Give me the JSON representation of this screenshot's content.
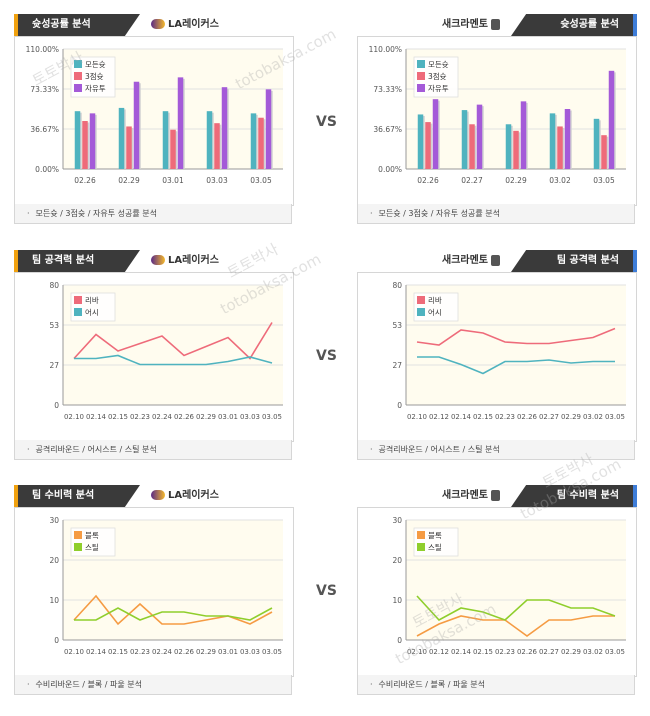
{
  "vs_label": "VS",
  "watermark": [
    "토토박사",
    "totobaksa.com"
  ],
  "teams": {
    "left": {
      "name": "LA레이커스",
      "icon": "lakers-logo-icon"
    },
    "right": {
      "name": "새크라멘토",
      "icon": "kings-logo-icon"
    }
  },
  "colors": {
    "tab_bg": "#3a3a3a",
    "tab_accent_left": "#f0a10f",
    "tab_accent_right": "#3e7dd8",
    "plot_bg": "#fffcef",
    "grid": "#e2e2e2",
    "teal": "#4fb3bf",
    "red": "#ee6b7a",
    "purple": "#a45ad8",
    "orange": "#f59b43",
    "green": "#8fce2c"
  },
  "sections": [
    {
      "title": "슛성공률 분석",
      "caption": "모든슛 / 3점슛 / 자유투 성공률 분석",
      "charts": {
        "left": {
          "type": "bar",
          "ylim": [
            0,
            110
          ],
          "yticks": [
            "0.00%",
            "36.67%",
            "73.33%",
            "110.00%"
          ],
          "categories": [
            "02.26",
            "02.29",
            "03.01",
            "03.03",
            "03.05"
          ],
          "series": [
            {
              "name": "모든슛",
              "color": "#4fb3bf",
              "values": [
                53,
                56,
                53,
                53,
                51
              ]
            },
            {
              "name": "3점슛",
              "color": "#ee6b7a",
              "values": [
                44,
                39,
                36,
                42,
                47
              ]
            },
            {
              "name": "자유투",
              "color": "#a45ad8",
              "values": [
                51,
                80,
                84,
                75,
                73
              ]
            }
          ]
        },
        "right": {
          "type": "bar",
          "ylim": [
            0,
            110
          ],
          "yticks": [
            "0.00%",
            "36.67%",
            "73.33%",
            "110.00%"
          ],
          "categories": [
            "02.26",
            "02.27",
            "02.29",
            "03.02",
            "03.05"
          ],
          "series": [
            {
              "name": "모든슛",
              "color": "#4fb3bf",
              "values": [
                50,
                54,
                41,
                51,
                46
              ]
            },
            {
              "name": "3점슛",
              "color": "#ee6b7a",
              "values": [
                43,
                41,
                35,
                39,
                31
              ]
            },
            {
              "name": "자유투",
              "color": "#a45ad8",
              "values": [
                64,
                59,
                62,
                55,
                90
              ]
            }
          ]
        }
      }
    },
    {
      "title": "팀 공격력 분석",
      "caption": "공격리바운드 / 어시스트 / 스틸 분석",
      "charts": {
        "left": {
          "type": "line",
          "ylim": [
            0,
            80
          ],
          "yticks": [
            "0",
            "27",
            "53",
            "80"
          ],
          "categories": [
            "02.10",
            "02.14",
            "02.15",
            "02.23",
            "02.24",
            "02.26",
            "02.29",
            "03.01",
            "03.03",
            "03.05"
          ],
          "series": [
            {
              "name": "리바",
              "color": "#ee6b7a",
              "values": [
                31,
                47,
                36,
                41,
                46,
                33,
                39,
                45,
                31,
                55
              ]
            },
            {
              "name": "어시",
              "color": "#4fb3bf",
              "values": [
                31,
                31,
                33,
                27,
                27,
                27,
                27,
                29,
                32,
                28
              ]
            }
          ]
        },
        "right": {
          "type": "line",
          "ylim": [
            0,
            80
          ],
          "yticks": [
            "0",
            "27",
            "53",
            "80"
          ],
          "categories": [
            "02.10",
            "02.12",
            "02.14",
            "02.15",
            "02.23",
            "02.26",
            "02.27",
            "02.29",
            "03.02",
            "03.05"
          ],
          "series": [
            {
              "name": "리바",
              "color": "#ee6b7a",
              "values": [
                42,
                40,
                50,
                48,
                42,
                41,
                41,
                43,
                45,
                51
              ]
            },
            {
              "name": "어시",
              "color": "#4fb3bf",
              "values": [
                32,
                32,
                27,
                21,
                29,
                29,
                30,
                28,
                29,
                29
              ]
            }
          ]
        }
      }
    },
    {
      "title": "팀 수비력 분석",
      "caption": "수비리바운드 / 블록 / 파울 분석",
      "charts": {
        "left": {
          "type": "line",
          "ylim": [
            0,
            30
          ],
          "yticks": [
            "0",
            "10",
            "20",
            "30"
          ],
          "categories": [
            "02.10",
            "02.14",
            "02.15",
            "02.23",
            "02.24",
            "02.26",
            "02.29",
            "03.01",
            "03.03",
            "03.05"
          ],
          "series": [
            {
              "name": "블록",
              "color": "#f59b43",
              "values": [
                5,
                11,
                4,
                9,
                4,
                4,
                5,
                6,
                4,
                7
              ]
            },
            {
              "name": "스틸",
              "color": "#8fce2c",
              "values": [
                5,
                5,
                8,
                5,
                7,
                7,
                6,
                6,
                5,
                8
              ]
            }
          ]
        },
        "right": {
          "type": "line",
          "ylim": [
            0,
            30
          ],
          "yticks": [
            "0",
            "10",
            "20",
            "30"
          ],
          "categories": [
            "02.10",
            "02.12",
            "02.14",
            "02.15",
            "02.23",
            "02.26",
            "02.27",
            "02.29",
            "03.02",
            "03.05"
          ],
          "series": [
            {
              "name": "블록",
              "color": "#f59b43",
              "values": [
                1,
                4,
                6,
                5,
                5,
                1,
                5,
                5,
                6,
                6
              ]
            },
            {
              "name": "스틸",
              "color": "#8fce2c",
              "values": [
                11,
                5,
                8,
                7,
                5,
                10,
                10,
                8,
                8,
                6
              ]
            }
          ]
        }
      }
    }
  ]
}
